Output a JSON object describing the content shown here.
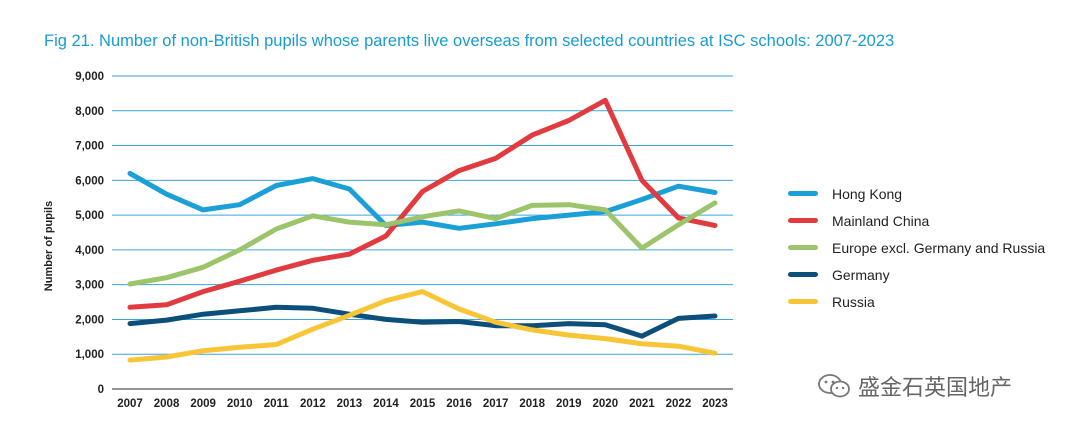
{
  "title": "Fig 21. Number of non-British pupils whose parents live overseas from selected countries at ISC schools: 2007-2023",
  "watermark": {
    "text": "盛金石英国地产",
    "icon": "wechat-icon"
  },
  "chart_data": {
    "type": "line",
    "title": "Fig 21. Number of non-British pupils whose parents live overseas from selected countries at ISC schools: 2007-2023",
    "xlabel": "",
    "ylabel": "Number of pupils",
    "ylim": [
      0,
      9000
    ],
    "yticks": [
      0,
      1000,
      2000,
      3000,
      4000,
      5000,
      6000,
      7000,
      8000,
      9000
    ],
    "ytick_labels": [
      "0",
      "1,000",
      "2,000",
      "3,000",
      "4,000",
      "5,000",
      "6,000",
      "7,000",
      "8,000",
      "9,000"
    ],
    "grid": true,
    "legend_position": "right",
    "categories": [
      "2007",
      "2008",
      "2009",
      "2010",
      "2011",
      "2012",
      "2013",
      "2014",
      "2015",
      "2016",
      "2017",
      "2018",
      "2019",
      "2020",
      "2021",
      "2022",
      "2023"
    ],
    "series": [
      {
        "name": "Hong Kong",
        "color": "#1a9fd6",
        "values": [
          6200,
          5600,
          5150,
          5300,
          5850,
          6050,
          5750,
          4700,
          4800,
          4620,
          4750,
          4900,
          5000,
          5100,
          5450,
          5830,
          5650
        ]
      },
      {
        "name": "Mainland China",
        "color": "#e13b3f",
        "values": [
          2350,
          2420,
          2800,
          3100,
          3420,
          3700,
          3880,
          4400,
          5680,
          6280,
          6630,
          7300,
          7720,
          8300,
          6000,
          4920,
          4700
        ]
      },
      {
        "name": "Europe excl. Germany and Russia",
        "color": "#9cc46a",
        "values": [
          3020,
          3200,
          3500,
          4000,
          4600,
          4980,
          4800,
          4720,
          4950,
          5120,
          4900,
          5280,
          5300,
          5150,
          4050,
          4720,
          5350
        ]
      },
      {
        "name": "Germany",
        "color": "#0c4f7a",
        "values": [
          1880,
          1980,
          2150,
          2250,
          2350,
          2320,
          2150,
          2000,
          1920,
          1940,
          1820,
          1820,
          1880,
          1850,
          1520,
          2030,
          2100
        ]
      },
      {
        "name": "Russia",
        "color": "#f7c536",
        "values": [
          830,
          920,
          1100,
          1200,
          1280,
          1720,
          2120,
          2540,
          2800,
          2300,
          1920,
          1700,
          1550,
          1450,
          1300,
          1230,
          1030
        ]
      }
    ]
  }
}
